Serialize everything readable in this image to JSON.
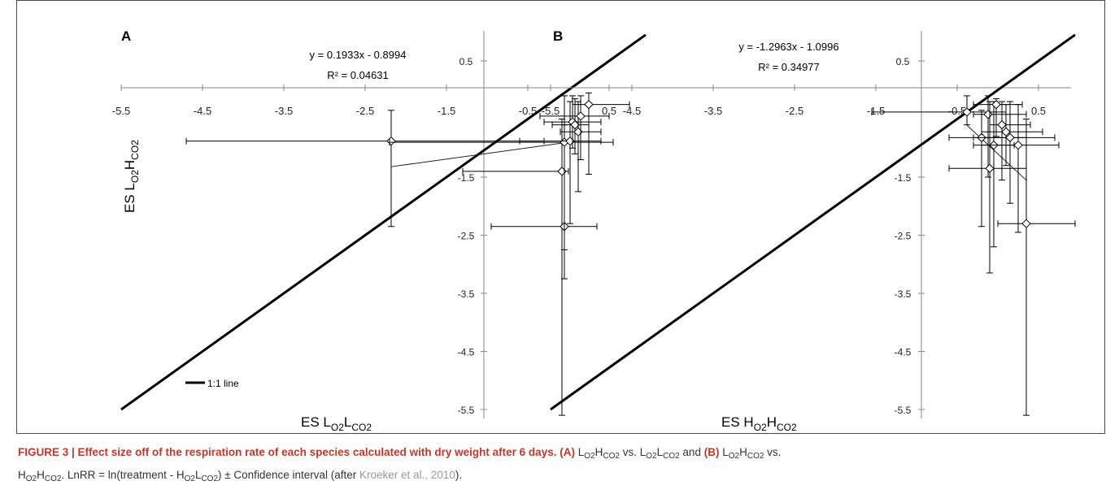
{
  "chart_data": [
    {
      "type": "scatter",
      "panel": "A",
      "equation": "y = 0.1933x - 0.8994",
      "r_squared": "R² = 0.04631",
      "xlabel_main": "ES L",
      "xlabel_sub1": "O2",
      "xlabel_mid": "L",
      "xlabel_sub2": "CO2",
      "ylabel_main": "ES L",
      "ylabel_sub1": "O2",
      "ylabel_mid": "H",
      "ylabel_sub2": "CO2",
      "x_ticks": [
        "-5.5",
        "-4.5",
        "-3.5",
        "-2.5",
        "-1.5",
        "-0.5",
        "0.5"
      ],
      "y_ticks": [
        "0.5",
        "-1.5",
        "-2.5",
        "-3.5",
        "-4.5",
        "-5.5"
      ],
      "xlim": [
        -5.5,
        0.9
      ],
      "ylim": [
        -5.5,
        1.0
      ],
      "legend": "1:1 line",
      "points": [
        {
          "x": -2.18,
          "y": -0.88,
          "xerr_lo": -4.7,
          "xerr_hi": -0.3,
          "yerr_lo": -2.35,
          "yerr_hi": -0.35
        },
        {
          "x": -0.08,
          "y": -1.4,
          "xerr_lo": -1.3,
          "xerr_hi": 0.0,
          "yerr_lo": -5.6,
          "yerr_hi": -0.5
        },
        {
          "x": -0.05,
          "y": -2.35,
          "xerr_lo": -0.95,
          "xerr_hi": 0.35,
          "yerr_lo": -3.25,
          "yerr_hi": -0.6
        },
        {
          "x": -0.05,
          "y": -0.9,
          "xerr_lo": -2.2,
          "xerr_hi": 0.55,
          "yerr_lo": -2.75,
          "yerr_hi": -0.1
        },
        {
          "x": 0.02,
          "y": -0.88,
          "xerr_lo": -0.6,
          "xerr_hi": 0.4,
          "yerr_lo": -2.3,
          "yerr_hi": -0.2
        },
        {
          "x": 0.05,
          "y": -0.55,
          "xerr_lo": -0.3,
          "xerr_hi": 0.4,
          "yerr_lo": -1.0,
          "yerr_hi": -0.1
        },
        {
          "x": 0.08,
          "y": -0.6,
          "xerr_lo": -0.2,
          "xerr_hi": 0.25,
          "yerr_lo": -1.1,
          "yerr_hi": -0.15
        },
        {
          "x": 0.12,
          "y": -0.72,
          "xerr_lo": -0.1,
          "xerr_hi": 0.4,
          "yerr_lo": -1.75,
          "yerr_hi": -0.2
        },
        {
          "x": 0.15,
          "y": -0.45,
          "xerr_lo": -0.35,
          "xerr_hi": 0.5,
          "yerr_lo": -1.2,
          "yerr_hi": -0.1
        },
        {
          "x": 0.25,
          "y": -0.25,
          "xerr_lo": 0.05,
          "xerr_hi": 0.75,
          "yerr_lo": -1.45,
          "yerr_hi": -0.05
        }
      ],
      "trend_x": [
        -2.18,
        0.02
      ]
    },
    {
      "type": "scatter",
      "panel": "B",
      "equation": "y = -1.2963x - 1.0996",
      "r_squared": "R² = 0.34977",
      "xlabel_main": "ES H",
      "xlabel_sub1": "O2",
      "xlabel_mid": "H",
      "xlabel_sub2": "CO2",
      "x_ticks": [
        "-5.5",
        "-4.5",
        "-3.5",
        "-2.5",
        "-1.5",
        "-0.5",
        "0.5"
      ],
      "y_ticks": [
        "0.5",
        "-1.5",
        "-2.5",
        "-3.5",
        "-4.5",
        "-5.5"
      ],
      "xlim": [
        -5.5,
        0.9
      ],
      "ylim": [
        -5.5,
        1.0
      ],
      "points": [
        {
          "x": -0.38,
          "y": -0.38,
          "xerr_lo": -1.55,
          "xerr_hi": 0.1,
          "yerr_lo": -0.6,
          "yerr_hi": -0.1
        },
        {
          "x": -0.2,
          "y": -0.82,
          "xerr_lo": -0.6,
          "xerr_hi": 0.35,
          "yerr_lo": -2.35,
          "yerr_hi": -0.35
        },
        {
          "x": -0.12,
          "y": -0.42,
          "xerr_lo": -0.3,
          "xerr_hi": 0.35,
          "yerr_lo": -1.5,
          "yerr_hi": -0.1
        },
        {
          "x": -0.1,
          "y": -1.35,
          "xerr_lo": -0.6,
          "xerr_hi": 0.35,
          "yerr_lo": -3.15,
          "yerr_hi": -0.2
        },
        {
          "x": -0.05,
          "y": -0.95,
          "xerr_lo": -0.3,
          "xerr_hi": 0.2,
          "yerr_lo": -2.7,
          "yerr_hi": -0.2
        },
        {
          "x": -0.02,
          "y": -0.25,
          "xerr_lo": -0.3,
          "xerr_hi": 0.3,
          "yerr_lo": -0.8,
          "yerr_hi": -0.15
        },
        {
          "x": 0.05,
          "y": -0.6,
          "xerr_lo": -0.1,
          "xerr_hi": 0.4,
          "yerr_lo": -1.55,
          "yerr_hi": -0.2
        },
        {
          "x": 0.1,
          "y": -0.72,
          "xerr_lo": -0.2,
          "xerr_hi": 0.55,
          "yerr_lo": -1.3,
          "yerr_hi": -0.25
        },
        {
          "x": 0.15,
          "y": -0.82,
          "xerr_lo": -0.3,
          "xerr_hi": 0.7,
          "yerr_lo": -1.95,
          "yerr_hi": -0.2
        },
        {
          "x": 0.25,
          "y": -0.95,
          "xerr_lo": -0.2,
          "xerr_hi": 0.75,
          "yerr_lo": -2.45,
          "yerr_hi": -0.25
        },
        {
          "x": 0.35,
          "y": -2.3,
          "xerr_lo": 0.0,
          "xerr_hi": 0.95,
          "yerr_lo": -5.6,
          "yerr_hi": -0.5
        }
      ],
      "trend_x": [
        -0.38,
        0.35
      ]
    }
  ],
  "caption": {
    "lead": "FIGURE 3 | Effect size off of the respiration rate of each species calculated with dry weight after 6 days.",
    "tag_a": "(A)",
    "a_p1": "L",
    "a_s1": "O2",
    "a_p2": "H",
    "a_s2": "CO2",
    "a_vs": "vs.",
    "a_p3": "L",
    "a_s3": "O2",
    "a_p4": "L",
    "a_s4": "CO2",
    "and": "and",
    "tag_b": "(B)",
    "b_p1": "L",
    "b_s1": "O2",
    "b_p2": "H",
    "b_s2": "CO2",
    "b_vs": "vs.",
    "b_p3": "H",
    "b_s3": "O2",
    "b_p4": "H",
    "b_s4": "CO2",
    "tail_1": ". LnRR = ln(treatment - H",
    "tail_s1": "O2",
    "tail_2": "L",
    "tail_s2": "CO2",
    "tail_3": ") ± Confidence interval (after",
    "cite": "Kroeker et al., 2010",
    "tail_4": ")."
  }
}
